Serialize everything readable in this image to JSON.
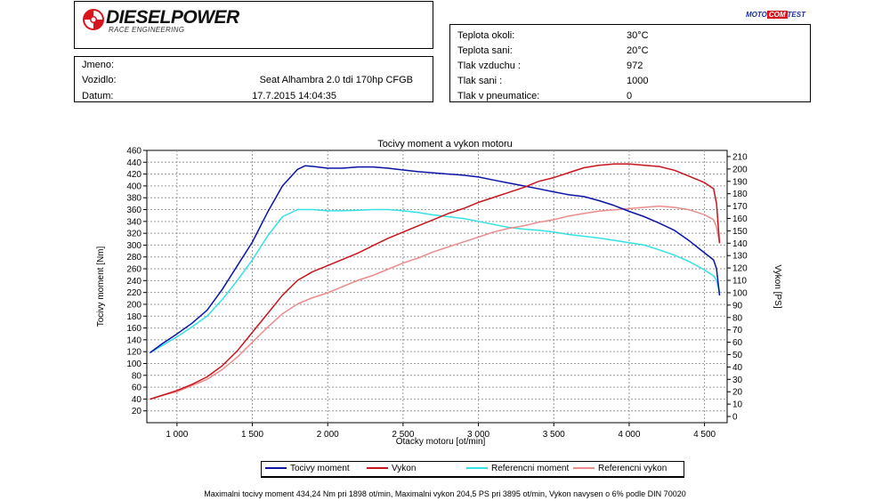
{
  "header": {
    "brand": "DIESELPOWER",
    "brand_sub": "RACE ENGINEERING",
    "partner_logo": {
      "left": "MOTO",
      "mid": "COM",
      "right": "TEST"
    }
  },
  "vehicle": {
    "name_label": "Jmeno:",
    "name_value": "",
    "vehicle_label": "Vozidlo:",
    "vehicle_value": "Seat Alhambra 2.0 tdi 170hp CFGB",
    "date_label": "Datum:",
    "date_value": "17.7.2015 14:04:35"
  },
  "conditions": [
    {
      "label": "Teplota okoli:",
      "value": "30°C"
    },
    {
      "label": "Teplota sani:",
      "value": "20°C"
    },
    {
      "label": "Tlak vzduchu :",
      "value": "972"
    },
    {
      "label": "Tlak sani :",
      "value": "1000"
    },
    {
      "label": "Tlak v pneumatice:",
      "value": "0"
    }
  ],
  "chart_data": {
    "type": "line",
    "title": "Tocivy moment a vykon motoru",
    "xlabel": "Otacky motoru [ot/min]",
    "ylabel_left": "Tocivy moment [Nm]",
    "ylabel_right": "Vykon [PS]",
    "xlim": [
      800,
      4650
    ],
    "ylim_left": [
      0,
      460
    ],
    "ylim_right": [
      -5,
      215
    ],
    "x_ticks": [
      1000,
      1500,
      2000,
      2500,
      3000,
      3500,
      4000,
      4500
    ],
    "x_tick_labels": [
      "1 000",
      "1 500",
      "2 000",
      "2 500",
      "3 000",
      "3 500",
      "4 000",
      "4 500"
    ],
    "y_ticks_left": [
      20,
      40,
      60,
      80,
      100,
      120,
      140,
      160,
      180,
      200,
      220,
      240,
      260,
      280,
      300,
      320,
      340,
      360,
      380,
      400,
      420,
      440,
      460
    ],
    "y_ticks_right": [
      0,
      10,
      20,
      30,
      40,
      50,
      60,
      70,
      80,
      90,
      100,
      110,
      120,
      130,
      140,
      150,
      160,
      170,
      180,
      190,
      200,
      210
    ],
    "grid": true,
    "legend_position": "bottom",
    "series": [
      {
        "name": "Tocivy moment",
        "axis": "left",
        "color": "#0a13a8",
        "x": [
          820,
          900,
          1000,
          1100,
          1200,
          1300,
          1400,
          1500,
          1600,
          1700,
          1800,
          1850,
          1900,
          2000,
          2100,
          2200,
          2300,
          2400,
          2500,
          2600,
          2700,
          2800,
          2900,
          3000,
          3100,
          3200,
          3300,
          3400,
          3500,
          3600,
          3700,
          3800,
          3900,
          4000,
          4100,
          4200,
          4300,
          4400,
          4500,
          4560,
          4580,
          4600
        ],
        "values": [
          118,
          133,
          150,
          168,
          190,
          225,
          265,
          305,
          355,
          400,
          428,
          434,
          433,
          430,
          430,
          432,
          432,
          430,
          427,
          424,
          422,
          420,
          418,
          415,
          410,
          405,
          400,
          395,
          390,
          385,
          382,
          375,
          367,
          357,
          348,
          337,
          325,
          307,
          287,
          275,
          260,
          215
        ]
      },
      {
        "name": "Vykon",
        "axis": "right",
        "color": "#c8141c",
        "x": [
          820,
          900,
          1000,
          1100,
          1200,
          1300,
          1400,
          1500,
          1600,
          1700,
          1800,
          1900,
          2000,
          2100,
          2200,
          2300,
          2400,
          2500,
          2600,
          2700,
          2800,
          2900,
          3000,
          3100,
          3200,
          3300,
          3400,
          3500,
          3600,
          3700,
          3800,
          3900,
          4000,
          4100,
          4200,
          4300,
          4400,
          4500,
          4560,
          4580,
          4600
        ],
        "values": [
          14,
          17,
          21,
          26,
          32,
          41,
          53,
          68,
          83,
          98,
          110,
          117,
          122,
          127,
          132,
          138,
          144,
          149,
          154,
          159,
          164,
          168,
          173,
          177,
          181,
          185,
          190,
          193,
          197,
          201,
          203,
          204,
          204,
          203,
          202,
          199,
          194,
          189,
          184,
          172,
          140
        ]
      },
      {
        "name": "Referencni moment",
        "axis": "left",
        "color": "#35e0e6",
        "x": [
          820,
          900,
          1000,
          1100,
          1200,
          1300,
          1400,
          1500,
          1600,
          1700,
          1800,
          1900,
          2000,
          2100,
          2200,
          2300,
          2400,
          2500,
          2600,
          2700,
          2800,
          2900,
          3000,
          3100,
          3200,
          3300,
          3400,
          3500,
          3600,
          3700,
          3800,
          3900,
          4000,
          4100,
          4200,
          4300,
          4400,
          4500,
          4560,
          4580,
          4600
        ],
        "values": [
          118,
          130,
          145,
          162,
          180,
          208,
          240,
          275,
          315,
          348,
          360,
          360,
          358,
          358,
          359,
          360,
          360,
          358,
          355,
          351,
          348,
          345,
          340,
          335,
          330,
          327,
          325,
          322,
          318,
          315,
          312,
          308,
          304,
          300,
          292,
          283,
          272,
          258,
          248,
          240,
          220
        ]
      },
      {
        "name": "Referencni vykon",
        "axis": "right",
        "color": "#eb8c8c",
        "x": [
          820,
          900,
          1000,
          1100,
          1200,
          1300,
          1400,
          1500,
          1600,
          1700,
          1800,
          1900,
          2000,
          2100,
          2200,
          2300,
          2400,
          2500,
          2600,
          2700,
          2800,
          2900,
          3000,
          3100,
          3200,
          3300,
          3400,
          3500,
          3600,
          3700,
          3800,
          3900,
          4000,
          4100,
          4200,
          4300,
          4400,
          4500,
          4560,
          4580,
          4600
        ],
        "values": [
          14,
          17,
          20,
          25,
          30,
          38,
          48,
          60,
          72,
          83,
          91,
          96,
          100,
          105,
          110,
          114,
          119,
          124,
          128,
          133,
          137,
          141,
          145,
          149,
          152,
          154,
          157,
          159,
          162,
          164,
          166,
          167,
          168,
          169,
          170,
          169,
          167,
          163,
          159,
          153,
          140
        ]
      }
    ]
  },
  "legend": [
    {
      "name": "Tocivy moment",
      "color": "#0a13a8"
    },
    {
      "name": "Vykon",
      "color": "#c8141c"
    },
    {
      "name": "Referencni moment",
      "color": "#35e0e6"
    },
    {
      "name": "Referencni vykon",
      "color": "#eb8c8c"
    }
  ],
  "footer": "Maximalni tocivy moment 434,24 Nm pri 1898 ot/min,  Maximalni vykon 204,5 PS pri 3895 ot/min,  Vykon navysen o 6% podle DIN 70020"
}
